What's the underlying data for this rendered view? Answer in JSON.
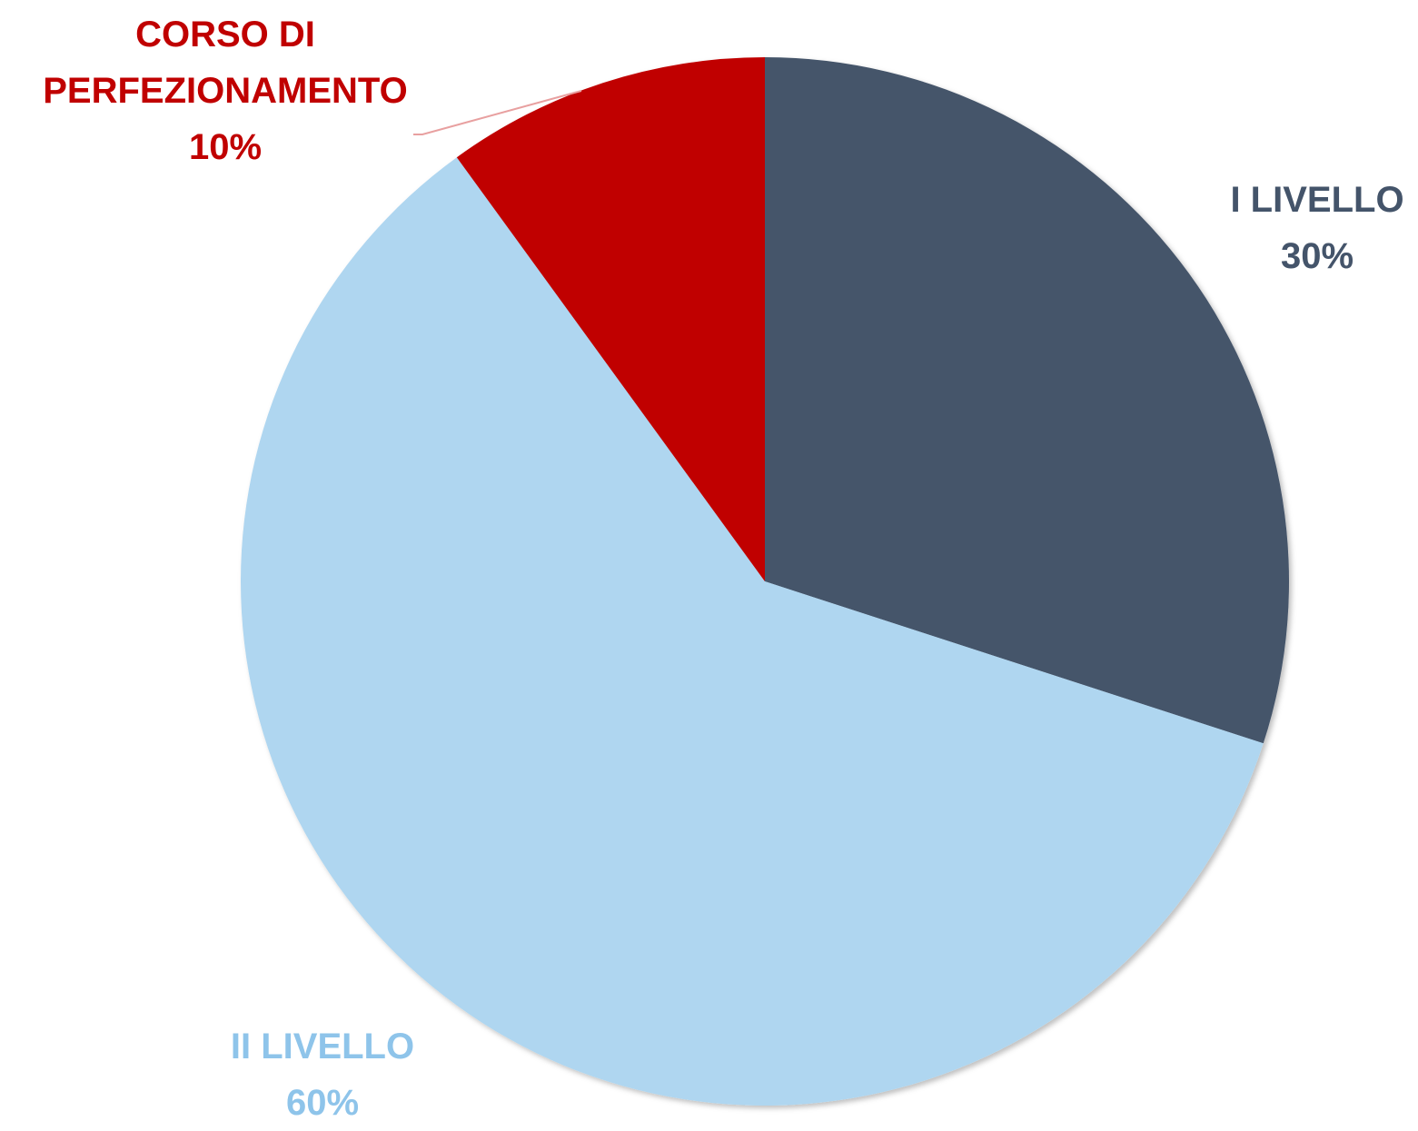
{
  "chart_data": {
    "type": "pie",
    "categories": [
      "I LIVELLO",
      "II LIVELLO",
      "CORSO DI PERFEZIONAMENTO"
    ],
    "values": [
      30,
      60,
      10
    ],
    "value_labels": [
      "30%",
      "60%",
      "10%"
    ],
    "colors": [
      "#44546a",
      "#afd6f0",
      "#c00000"
    ],
    "label_colors": [
      "#44546a",
      "#8ec4ea",
      "#c00000"
    ]
  }
}
